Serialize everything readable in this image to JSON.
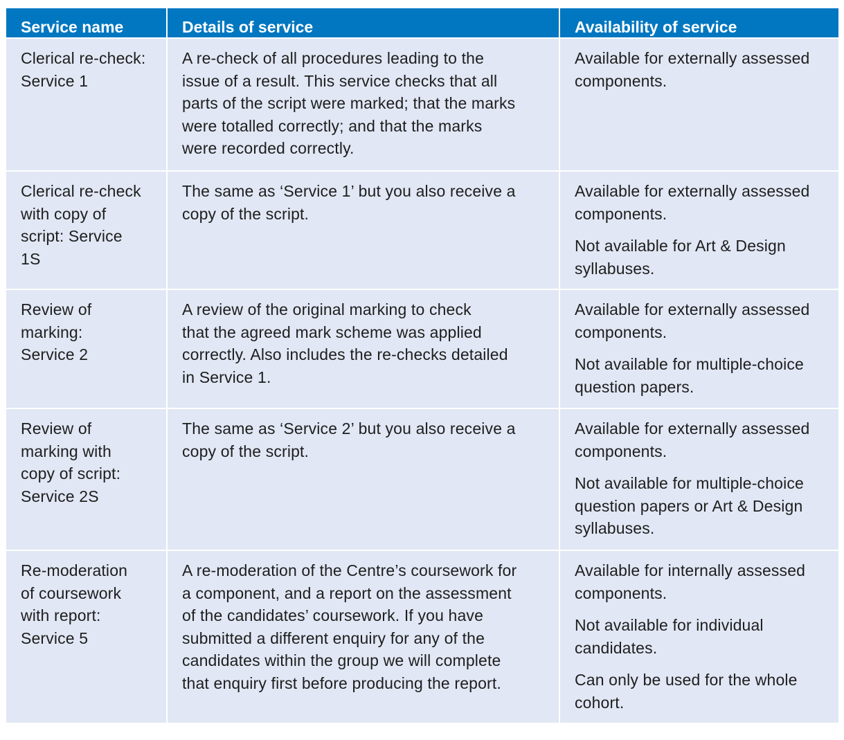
{
  "headers": [
    "Service name",
    "Details of service",
    "Availability of service"
  ],
  "rows": [
    {
      "name": [
        [
          "Clerical re-check:",
          "Service 1"
        ]
      ],
      "details": [
        [
          "A re-check of all procedures leading to the",
          "issue of a result. This service checks that all",
          "parts of the script were marked; that the marks",
          "were totalled correctly; and that the marks",
          "were recorded correctly."
        ]
      ],
      "availability": [
        [
          "Available for externally assessed",
          "components."
        ]
      ]
    },
    {
      "name": [
        [
          "Clerical re-check",
          "with copy of",
          "script: Service",
          "1S"
        ]
      ],
      "details": [
        [
          "The same as ‘Service 1’ but you also receive a",
          "copy of the script."
        ]
      ],
      "availability": [
        [
          "Available for externally assessed",
          "components."
        ],
        [
          "Not available for Art & Design",
          "syllabuses."
        ]
      ]
    },
    {
      "name": [
        [
          "Review of",
          "marking:",
          "Service 2"
        ]
      ],
      "details": [
        [
          "A review of the original marking to check",
          "that the agreed mark scheme was applied",
          "correctly. Also includes the re-checks detailed",
          "in Service 1."
        ]
      ],
      "availability": [
        [
          "Available for externally assessed",
          "components."
        ],
        [
          "Not available for multiple-choice",
          "question papers."
        ]
      ]
    },
    {
      "name": [
        [
          "Review of",
          "marking with",
          "copy of script:",
          "Service 2S"
        ]
      ],
      "details": [
        [
          "The same as ‘Service 2’ but you also receive a",
          "copy of the script."
        ]
      ],
      "availability": [
        [
          "Available for externally assessed",
          "components."
        ],
        [
          "Not available for multiple-choice",
          "question papers or Art & Design",
          "syllabuses."
        ]
      ]
    },
    {
      "name": [
        [
          "Re-moderation",
          "of coursework",
          "with report:",
          "Service 5"
        ]
      ],
      "details": [
        [
          "A re-moderation of the Centre’s coursework for",
          "a component, and a report on the assessment",
          "of the candidates’ coursework. If you have",
          "submitted a different enquiry for any of the",
          "candidates within the group we will complete",
          "that enquiry first before producing the report."
        ]
      ],
      "availability": [
        [
          "Available for internally assessed",
          "components."
        ],
        [
          "Not available for individual",
          "candidates."
        ],
        [
          "Can only be used for the whole",
          "cohort."
        ]
      ]
    }
  ],
  "colors": {
    "header_bg": "#0077c0",
    "cell_bg": "#e1e7f4",
    "border": "#ffffff"
  }
}
